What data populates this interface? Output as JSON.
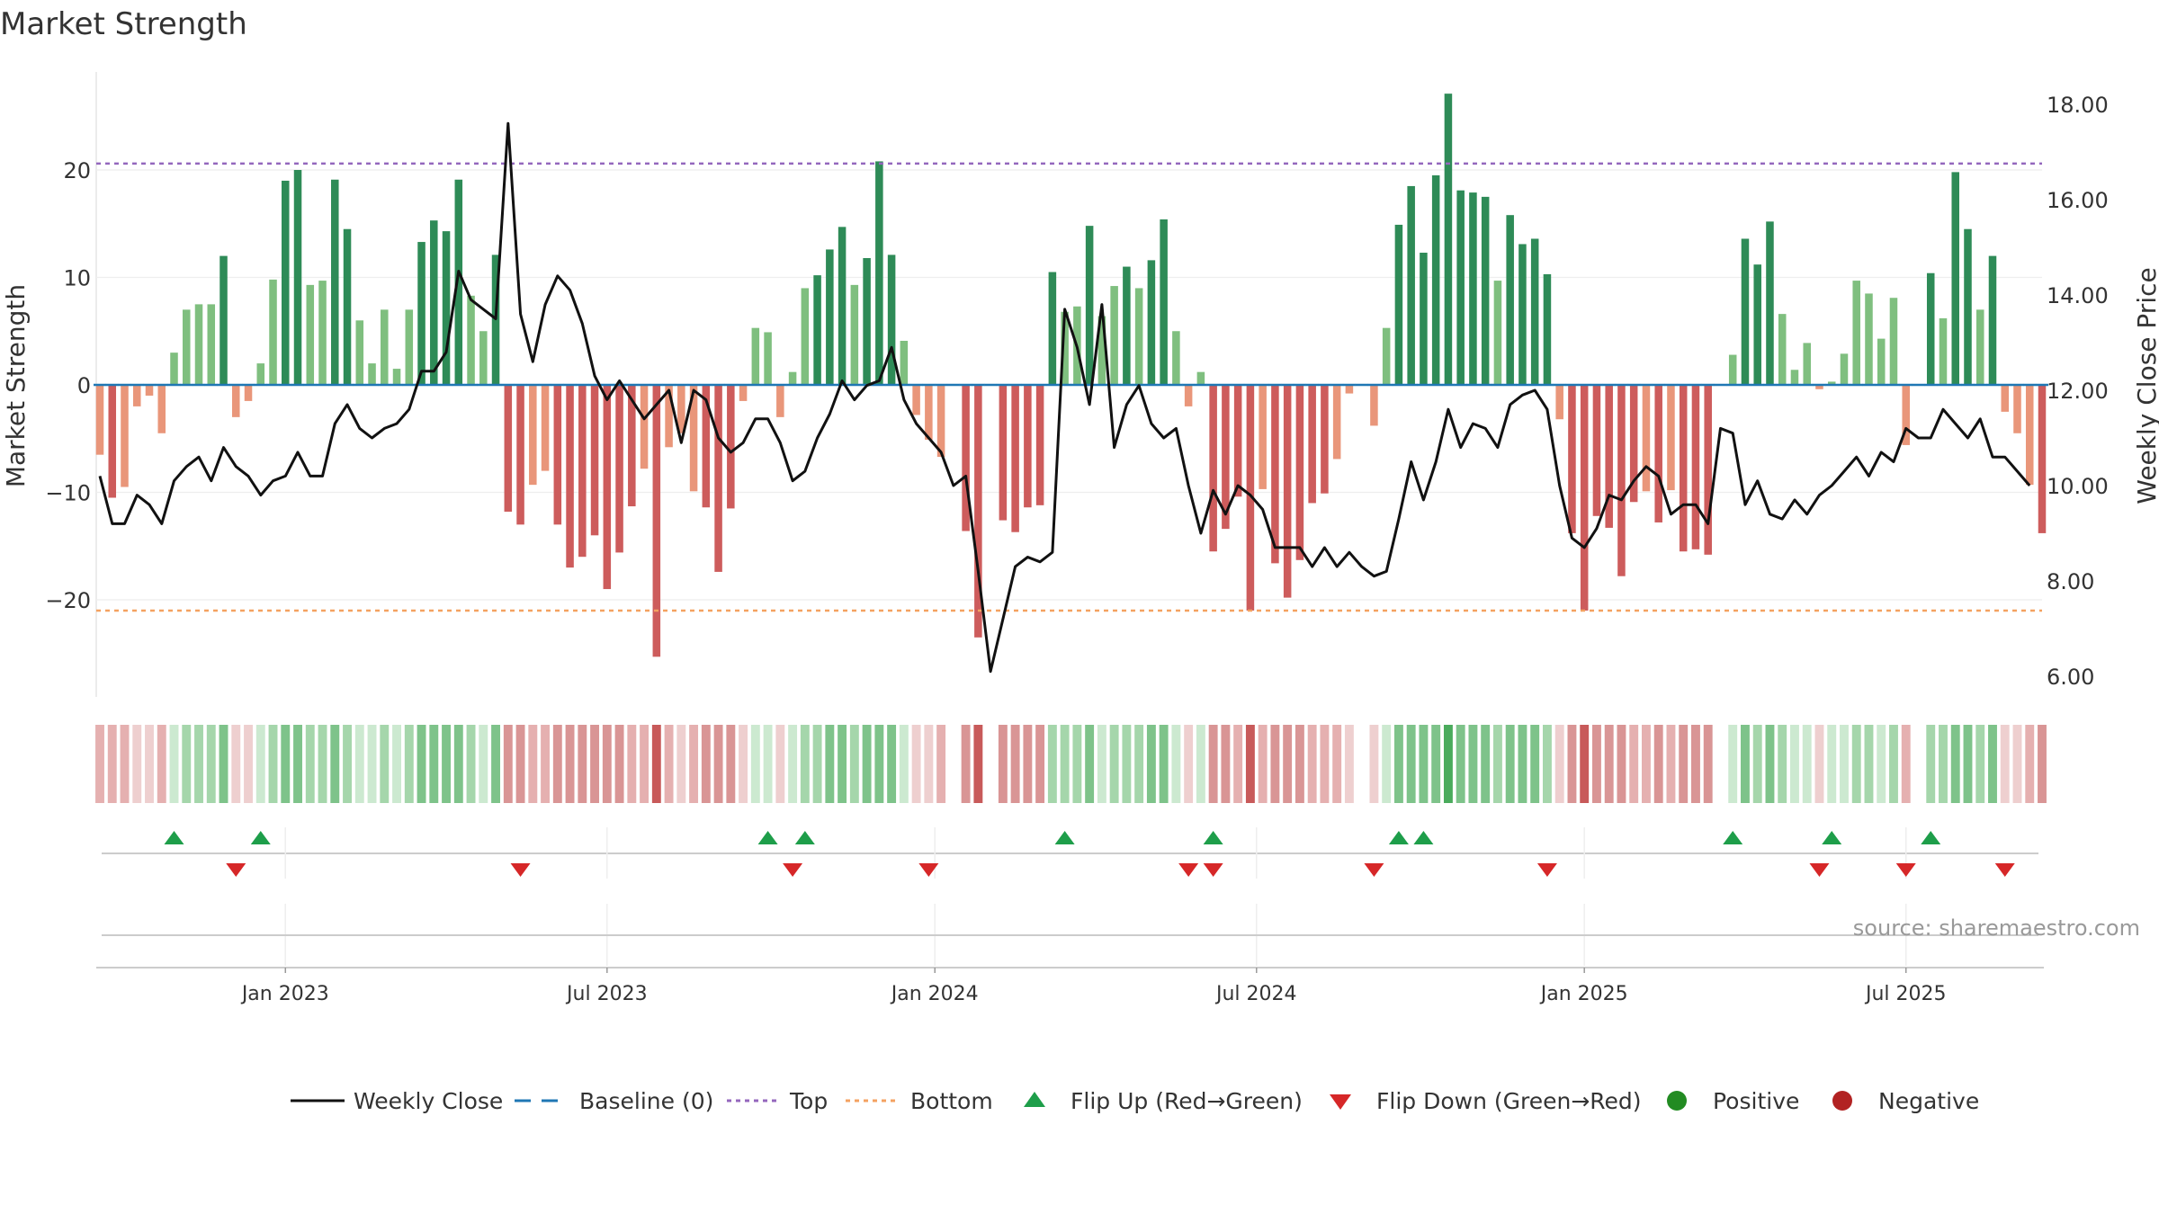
{
  "chart_data": {
    "type": "bar+line",
    "title": "Market Strength",
    "ylabel_left": "Market Strength",
    "ylabel_right": "Weekly Close Price",
    "source": "source: sharemaestro.com",
    "ylim_left": [
      -29,
      29
    ],
    "ylim_right": [
      5.5,
      18.6
    ],
    "yticks_left": [
      20,
      10,
      0,
      -10,
      -20
    ],
    "yticks_left_labels": [
      "20",
      "10",
      "0",
      "−10",
      "−20"
    ],
    "yticks_right": [
      6,
      8,
      10,
      12,
      14,
      16,
      18
    ],
    "yticks_right_labels": [
      "6.00",
      "8.00",
      "10.00",
      "12.00",
      "14.00",
      "16.00",
      "18.00"
    ],
    "top_level": 20.6,
    "bottom_level": -21,
    "baseline": 0,
    "x_ticks": [
      {
        "index": 15,
        "label": "Jan 2023"
      },
      {
        "index": 41,
        "label": "Jul 2023"
      },
      {
        "index": 67.5,
        "label": "Jan 2024"
      },
      {
        "index": 93.5,
        "label": "Jul 2024"
      },
      {
        "index": 120,
        "label": "Jan 2025"
      },
      {
        "index": 146,
        "label": "Jul 2025"
      }
    ],
    "strength": [
      -6.5,
      -10.5,
      -9.5,
      -2,
      -1,
      -4.5,
      3,
      7,
      7.5,
      7.5,
      12,
      -3,
      -1.5,
      2,
      9.8,
      19,
      20,
      9.3,
      9.7,
      19.1,
      14.5,
      6,
      2,
      7,
      1.5,
      7,
      13.3,
      15.3,
      14.3,
      19.1,
      8.3,
      5,
      12.1,
      -11.8,
      -13,
      -9.3,
      -8,
      -13,
      -17,
      -16,
      -14,
      -19,
      -15.6,
      -11.3,
      -7.8,
      -25.3,
      -5.8,
      -4.5,
      -9.9,
      -11.4,
      -17.4,
      -11.5,
      -1.5,
      5.3,
      4.9,
      -3,
      1.2,
      9,
      10.2,
      12.6,
      14.7,
      9.3,
      11.8,
      20.8,
      12.1,
      4.1,
      -2.8,
      -5.1,
      -6.7,
      0,
      -13.6,
      -23.5,
      0,
      -12.6,
      -13.7,
      -11.4,
      -11.2,
      10.5,
      6.8,
      7.3,
      14.8,
      6.4,
      9.2,
      11,
      9,
      11.6,
      15.4,
      5,
      -2,
      1.2,
      -15.5,
      -13.4,
      -10.4,
      -21,
      -9.7,
      -16.6,
      -19.8,
      -16.3,
      -11,
      -10.1,
      -6.9,
      -0.8,
      0,
      -3.8,
      5.3,
      14.9,
      18.5,
      12.3,
      19.5,
      27.1,
      18.1,
      17.9,
      17.5,
      9.7,
      15.8,
      13.1,
      13.6,
      10.3,
      -3.2,
      -13.8,
      -21,
      -12.2,
      -13.3,
      -17.8,
      -10.9,
      -9.9,
      -12.8,
      -9.8,
      -15.5,
      -15.3,
      -15.8,
      0,
      2.8,
      13.6,
      11.2,
      15.2,
      6.6,
      1.4,
      3.9,
      -0.4,
      0.3,
      2.9,
      9.7,
      8.5,
      4.3,
      8.1,
      -5.6,
      0,
      10.4,
      6.2,
      19.8,
      14.5,
      7,
      12,
      -2.5,
      -4.5,
      -9.3,
      -13.8
    ],
    "close": [
      10.2,
      9.2,
      9.2,
      9.8,
      9.6,
      9.2,
      10.1,
      10.4,
      10.6,
      10.1,
      10.8,
      10.4,
      10.2,
      9.8,
      10.1,
      10.2,
      10.7,
      10.2,
      10.2,
      11.3,
      11.7,
      11.2,
      11,
      11.2,
      11.3,
      11.6,
      12.4,
      12.4,
      12.8,
      14.5,
      13.9,
      13.7,
      13.5,
      17.6,
      13.6,
      12.6,
      13.8,
      14.4,
      14.1,
      13.4,
      12.3,
      11.8,
      12.2,
      11.8,
      11.4,
      11.7,
      12,
      10.9,
      12,
      11.8,
      11,
      10.7,
      10.9,
      11.4,
      11.4,
      10.9,
      10.1,
      10.3,
      11,
      11.5,
      12.2,
      11.8,
      12.1,
      12.2,
      12.9,
      11.8,
      11.3,
      11,
      10.7,
      10,
      10.2,
      8.2,
      6.1,
      7.2,
      8.3,
      8.5,
      8.4,
      8.6,
      13.7,
      12.9,
      11.7,
      13.8,
      10.8,
      11.7,
      12.1,
      11.3,
      11,
      11.2,
      10,
      9,
      9.9,
      9.4,
      10,
      9.8,
      9.5,
      8.7,
      8.7,
      8.7,
      8.3,
      8.7,
      8.3,
      8.6,
      8.3,
      8.1,
      8.2,
      9.3,
      10.5,
      9.7,
      10.5,
      11.6,
      10.8,
      11.3,
      11.2,
      10.8,
      11.7,
      11.9,
      12,
      11.6,
      10,
      8.9,
      8.7,
      9.1,
      9.8,
      9.7,
      10.1,
      10.4,
      10.2,
      9.4,
      9.6,
      9.6,
      9.2,
      11.2,
      11.1,
      9.6,
      10.1,
      9.4,
      9.3,
      9.7,
      9.4,
      9.8,
      10,
      10.3,
      10.6,
      10.2,
      10.7,
      10.5,
      11.2,
      11,
      11,
      11.6,
      11.3,
      11,
      11.4,
      10.6,
      10.6,
      10.3,
      10
    ],
    "heat_levels": [
      -2,
      -2,
      -2,
      -1,
      -1,
      -2,
      1,
      2,
      2,
      2,
      3,
      -1,
      -1,
      1,
      2,
      3,
      3,
      2,
      2,
      3,
      2,
      1,
      1,
      2,
      1,
      2,
      3,
      3,
      3,
      3,
      2,
      1,
      3,
      -3,
      -3,
      -2,
      -2,
      -3,
      -3,
      -3,
      -3,
      -3,
      -3,
      -2,
      -2,
      -4,
      -2,
      -1,
      -2,
      -3,
      -3,
      -3,
      -1,
      1,
      1,
      -1,
      1,
      2,
      2,
      3,
      3,
      2,
      3,
      3,
      3,
      1,
      -1,
      -1,
      -2,
      null,
      -3,
      -4,
      null,
      -3,
      -3,
      -3,
      -3,
      2,
      2,
      2,
      3,
      1,
      2,
      2,
      2,
      3,
      3,
      1,
      -1,
      1,
      -3,
      -3,
      -2,
      -4,
      -2,
      -3,
      -3,
      -3,
      -2,
      -2,
      -2,
      -1,
      null,
      -1,
      1,
      3,
      3,
      3,
      3,
      4,
      3,
      3,
      3,
      2,
      3,
      3,
      3,
      2,
      -1,
      -3,
      -4,
      -3,
      -3,
      -3,
      -2,
      -2,
      -3,
      -2,
      -3,
      -3,
      -3,
      null,
      1,
      3,
      2,
      3,
      2,
      1,
      1,
      -1,
      1,
      1,
      2,
      2,
      1,
      2,
      -2,
      null,
      2,
      2,
      3,
      3,
      2,
      3,
      -1,
      -1,
      -2,
      -3
    ],
    "flip_up": [
      6,
      13,
      54,
      57,
      78,
      90,
      105,
      107,
      132,
      140,
      148
    ],
    "flip_down": [
      11,
      34,
      56,
      67,
      88,
      90,
      103,
      117,
      139,
      146,
      154
    ],
    "legend": [
      {
        "type": "line",
        "label": "Weekly Close",
        "color": "#111111"
      },
      {
        "type": "dash",
        "label": "Baseline (0)",
        "color": "#1f77b4"
      },
      {
        "type": "dot",
        "label": "Top",
        "color": "#9467bd"
      },
      {
        "type": "dot",
        "label": "Bottom",
        "color": "#f4a261"
      },
      {
        "type": "tri-up",
        "label": "Flip Up (Red→Green)",
        "color": "#1e9e4a"
      },
      {
        "type": "tri-down",
        "label": "Flip Down (Green→Red)",
        "color": "#d62728"
      },
      {
        "type": "circle",
        "label": "Positive",
        "color": "#228b22"
      },
      {
        "type": "circle",
        "label": "Negative",
        "color": "#b22222"
      }
    ],
    "colors": {
      "strong_pos": "#2e8b57",
      "weak_pos": "#7fbf7f",
      "strong_neg": "#cd5c5c",
      "weak_neg": "#e9967a",
      "line": "#111111",
      "top": "#9467bd",
      "bottom": "#f4a261",
      "baseline": "#1f77b4"
    }
  }
}
